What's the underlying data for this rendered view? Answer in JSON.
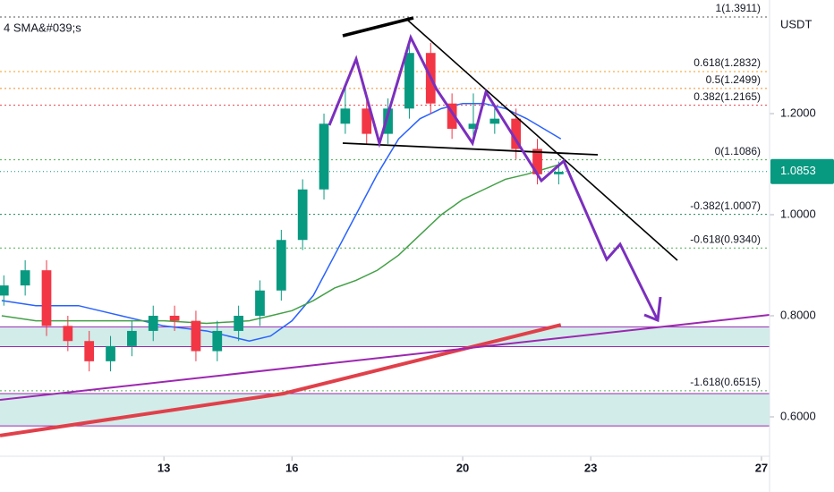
{
  "chart_data": {
    "type": "candlestick",
    "indicator_label": "4 SMA&#039;s",
    "currency": "USDT",
    "xlim": [
      9.16,
      27.19
    ],
    "xticks": [
      13,
      16,
      20,
      23,
      27
    ],
    "ylim": [
      0.5221,
      1.4248
    ],
    "yticks": [
      {
        "value": 1.2,
        "label": "1.2000"
      },
      {
        "value": 1.0,
        "label": "1.0000"
      },
      {
        "value": 0.8,
        "label": "0.8000"
      },
      {
        "value": 0.6,
        "label": "0.6000"
      }
    ],
    "up_color": "#089981",
    "down_color": "#f23645",
    "candles": {
      "x": [
        9.25,
        9.75,
        10.25,
        10.75,
        11.25,
        11.75,
        12.25,
        12.75,
        13.25,
        13.75,
        14.25,
        14.75,
        15.25,
        15.75,
        16.25,
        16.75,
        17.25,
        17.75,
        18.25,
        18.75,
        19.25,
        19.75,
        20.25,
        20.75,
        21.25,
        21.75,
        22.25
      ],
      "open": [
        0.84,
        0.86,
        0.89,
        0.78,
        0.75,
        0.71,
        0.74,
        0.77,
        0.8,
        0.79,
        0.73,
        0.77,
        0.8,
        0.85,
        0.95,
        1.05,
        1.18,
        1.21,
        1.16,
        1.21,
        1.32,
        1.22,
        1.17,
        1.18,
        1.19,
        1.13,
        1.08
      ],
      "high": [
        0.88,
        0.91,
        0.91,
        0.8,
        0.77,
        0.76,
        0.79,
        0.82,
        0.82,
        0.81,
        0.79,
        0.82,
        0.87,
        0.97,
        1.07,
        1.2,
        1.25,
        1.23,
        1.23,
        1.34,
        1.34,
        1.24,
        1.24,
        1.21,
        1.21,
        1.15,
        1.105
      ],
      "low": [
        0.82,
        0.84,
        0.76,
        0.73,
        0.69,
        0.69,
        0.72,
        0.75,
        0.77,
        0.71,
        0.71,
        0.75,
        0.78,
        0.83,
        0.93,
        1.03,
        1.16,
        1.14,
        1.14,
        1.19,
        1.2,
        1.15,
        1.15,
        1.16,
        1.11,
        1.06,
        1.06
      ],
      "close": [
        0.86,
        0.89,
        0.78,
        0.75,
        0.71,
        0.74,
        0.77,
        0.8,
        0.79,
        0.73,
        0.77,
        0.8,
        0.85,
        0.95,
        1.05,
        1.18,
        1.21,
        1.16,
        1.21,
        1.32,
        1.22,
        1.17,
        1.18,
        1.19,
        1.13,
        1.08,
        1.085
      ]
    },
    "series": [
      {
        "color": "#2962ff",
        "width": 1.5,
        "x": [
          9.2,
          10,
          11,
          12,
          13,
          14,
          15,
          15.5,
          16,
          16.5,
          17,
          17.5,
          18,
          18.5,
          19,
          19.5,
          20,
          20.5,
          21,
          21.5,
          22.3
        ],
        "values": [
          0.83,
          0.82,
          0.82,
          0.8,
          0.78,
          0.77,
          0.75,
          0.76,
          0.79,
          0.84,
          0.92,
          1.0,
          1.08,
          1.15,
          1.19,
          1.21,
          1.22,
          1.22,
          1.21,
          1.19,
          1.15
        ]
      },
      {
        "color": "#43a047",
        "width": 1.5,
        "x": [
          9.2,
          10,
          11,
          12,
          13,
          14,
          15,
          15.5,
          16,
          16.5,
          17,
          17.5,
          18,
          18.5,
          19,
          19.5,
          20,
          20.5,
          21,
          21.5,
          22.3
        ],
        "values": [
          0.8,
          0.79,
          0.79,
          0.79,
          0.79,
          0.785,
          0.79,
          0.8,
          0.81,
          0.83,
          0.855,
          0.87,
          0.89,
          0.92,
          0.96,
          1.0,
          1.03,
          1.05,
          1.07,
          1.08,
          1.1
        ]
      },
      {
        "color": "#e0404a",
        "width": 4,
        "x": [
          9.16,
          15.8,
          22.3
        ],
        "values": [
          0.563,
          0.646,
          0.782
        ]
      }
    ],
    "zones": [
      {
        "low": 0.739,
        "high": 0.778
      },
      {
        "low": 0.582,
        "high": 0.646
      }
    ],
    "fib_levels": [
      {
        "label": "1(1.3911)",
        "price": 1.3911,
        "color": "#555555"
      },
      {
        "label": "0.618(1.2832)",
        "price": 1.2832,
        "color": "#f59d1a"
      },
      {
        "label": "0.5(1.2499)",
        "price": 1.2499,
        "color": "#f08a24"
      },
      {
        "label": "0.382(1.2165)",
        "price": 1.2165,
        "color": "#e8414a"
      },
      {
        "label": "0(1.1086)",
        "price": 1.1086,
        "color": "#4caf50"
      },
      {
        "label": "-0.382(1.0007)",
        "price": 1.0007,
        "color": "#1b8a5a"
      },
      {
        "label": "-0.618(0.9340)",
        "price": 0.934,
        "color": "#4caf50"
      },
      {
        "label": "-1.618(0.6515)",
        "price": 0.6515,
        "color": "#4caf50"
      }
    ],
    "last_price": 1.0853
  }
}
